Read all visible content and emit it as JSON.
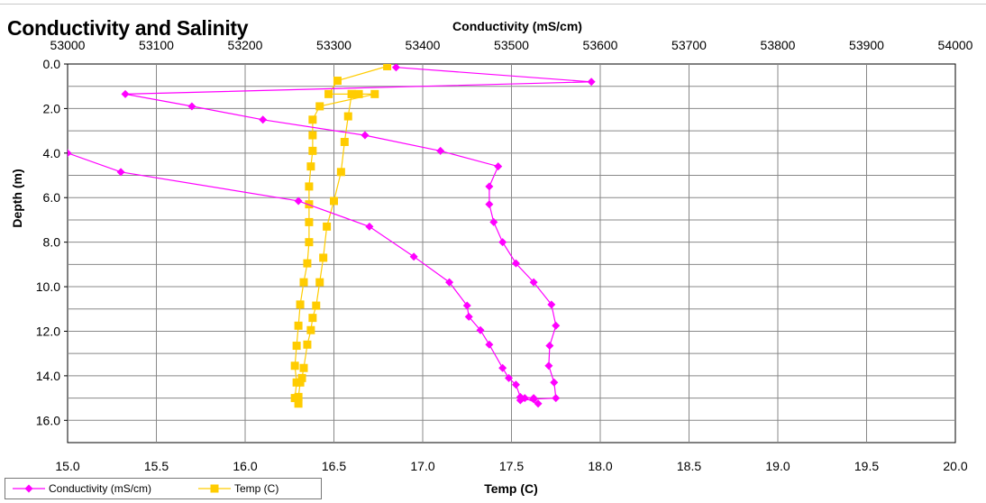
{
  "chart_data": {
    "type": "scatter",
    "title": "Conductivity and Salinity",
    "ylabel": "Depth (m)",
    "ylim": [
      0,
      17
    ],
    "y_inverted": true,
    "yticks": [
      "0.0",
      "2.0",
      "4.0",
      "6.0",
      "8.0",
      "10.0",
      "12.0",
      "14.0",
      "16.0"
    ],
    "x_top": {
      "label": "Conductivity (mS/cm)",
      "range": [
        53000,
        54000
      ],
      "ticks": [
        "53000",
        "53100",
        "53200",
        "53300",
        "53400",
        "53500",
        "53600",
        "53700",
        "53800",
        "53900",
        "54000"
      ]
    },
    "x_bottom": {
      "label": "Temp (C)",
      "range": [
        15.0,
        20.0
      ],
      "ticks": [
        "15.0",
        "15.5",
        "16.0",
        "16.5",
        "17.0",
        "17.5",
        "18.0",
        "18.5",
        "19.0",
        "19.5",
        "20.0"
      ]
    },
    "grid": true,
    "legend_position": "bottom-left",
    "series": [
      {
        "name": "Conductivity (mS/cm)",
        "axis": "top",
        "color": "#ff00ff",
        "marker": "diamond",
        "points": [
          [
            53370,
            0.15
          ],
          [
            53590,
            0.8
          ],
          [
            53065,
            1.35
          ],
          [
            53140,
            1.9
          ],
          [
            53220,
            2.5
          ],
          [
            53335,
            3.2
          ],
          [
            53420,
            3.9
          ],
          [
            53485,
            4.6
          ],
          [
            53475,
            5.5
          ],
          [
            53475,
            6.3
          ],
          [
            53480,
            7.1
          ],
          [
            53490,
            8.0
          ],
          [
            53505,
            8.95
          ],
          [
            53525,
            9.8
          ],
          [
            53545,
            10.8
          ],
          [
            53550,
            11.75
          ],
          [
            53543,
            12.65
          ],
          [
            53542,
            13.55
          ],
          [
            53548,
            14.3
          ],
          [
            53550,
            15.0
          ],
          [
            53525,
            15.05
          ],
          [
            53510,
            15.1
          ],
          [
            53515,
            15.0
          ],
          [
            53530,
            15.25
          ],
          [
            53525,
            15.0
          ],
          [
            53510,
            14.95
          ],
          [
            53505,
            14.4
          ],
          [
            53497,
            14.1
          ],
          [
            53490,
            13.65
          ],
          [
            53475,
            12.6
          ],
          [
            53465,
            11.95
          ],
          [
            53452,
            11.35
          ],
          [
            53450,
            10.85
          ],
          [
            53430,
            9.8
          ],
          [
            53390,
            8.65
          ],
          [
            53340,
            7.3
          ],
          [
            53260,
            6.15
          ],
          [
            53060,
            4.85
          ],
          [
            53000,
            4.0
          ]
        ]
      },
      {
        "name": "Temp (C)",
        "axis": "bottom",
        "color": "#ffcc00",
        "marker": "square",
        "points": [
          [
            16.8,
            0.1
          ],
          [
            16.52,
            0.75
          ],
          [
            16.47,
            1.35
          ],
          [
            16.6,
            1.35
          ],
          [
            16.64,
            1.35
          ],
          [
            16.73,
            1.35
          ],
          [
            16.42,
            1.9
          ],
          [
            16.38,
            2.5
          ],
          [
            16.38,
            3.2
          ],
          [
            16.38,
            3.9
          ],
          [
            16.37,
            4.6
          ],
          [
            16.36,
            5.5
          ],
          [
            16.36,
            6.3
          ],
          [
            16.36,
            7.1
          ],
          [
            16.36,
            8.0
          ],
          [
            16.35,
            8.95
          ],
          [
            16.33,
            9.8
          ],
          [
            16.31,
            10.8
          ],
          [
            16.3,
            11.75
          ],
          [
            16.29,
            12.65
          ],
          [
            16.28,
            13.55
          ],
          [
            16.29,
            14.3
          ],
          [
            16.28,
            15.0
          ],
          [
            16.3,
            15.25
          ],
          [
            16.3,
            14.95
          ],
          [
            16.31,
            14.3
          ],
          [
            16.32,
            14.1
          ],
          [
            16.33,
            13.65
          ],
          [
            16.35,
            12.6
          ],
          [
            16.37,
            11.95
          ],
          [
            16.38,
            11.4
          ],
          [
            16.4,
            10.85
          ],
          [
            16.42,
            9.8
          ],
          [
            16.44,
            8.7
          ],
          [
            16.46,
            7.3
          ],
          [
            16.5,
            6.15
          ],
          [
            16.54,
            4.85
          ],
          [
            16.56,
            3.5
          ],
          [
            16.58,
            2.35
          ],
          [
            16.6,
            1.35
          ]
        ]
      }
    ]
  }
}
